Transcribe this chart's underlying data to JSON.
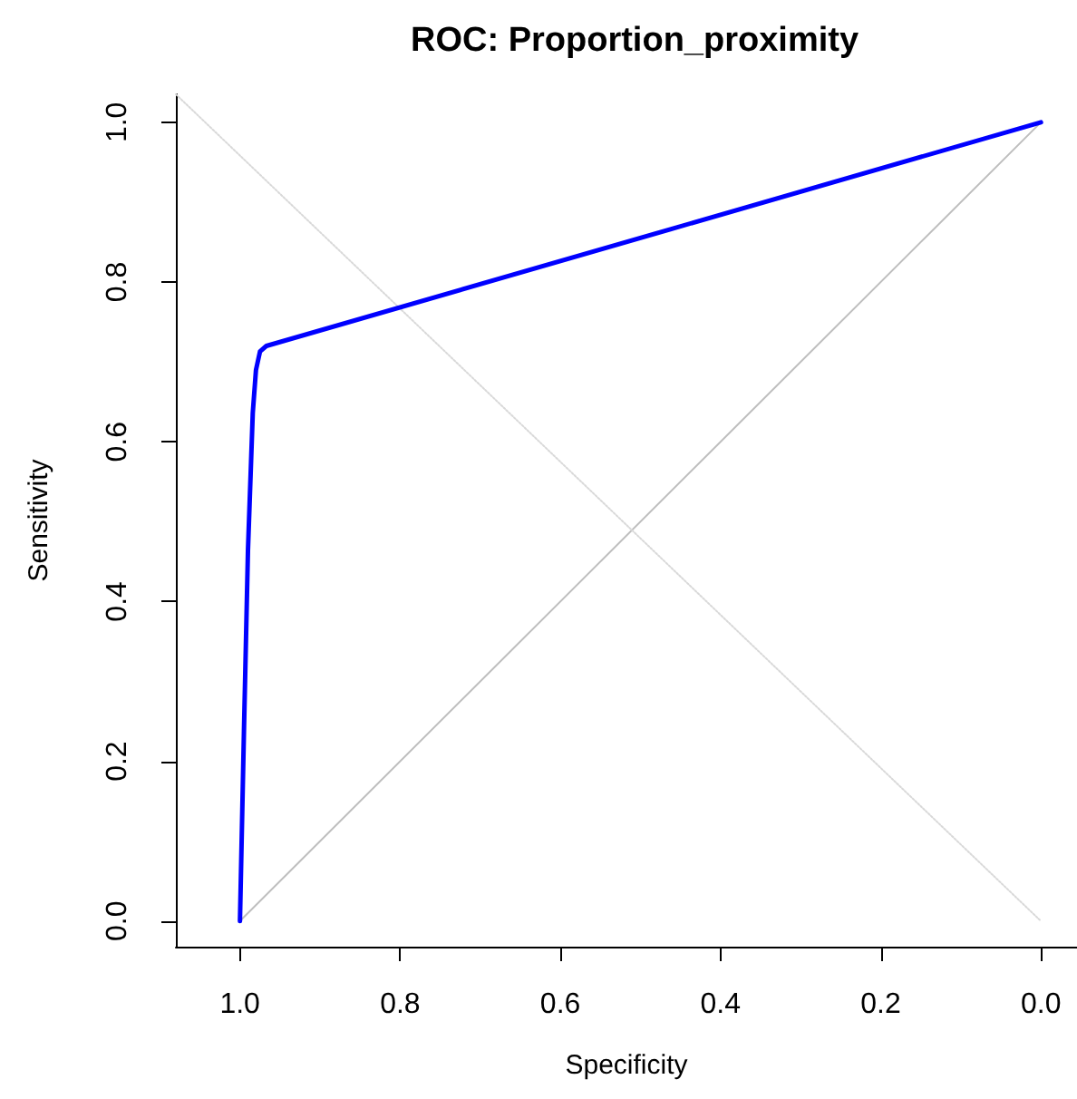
{
  "chart_data": {
    "type": "line",
    "title": "ROC: Proportion_proximity",
    "xlabel": "Specificity",
    "ylabel": "Sensitivity",
    "xlim": [
      1.08,
      -0.045
    ],
    "ylim": [
      -0.032,
      1.035
    ],
    "xticks": [
      {
        "value": 1,
        "label": "1.0"
      },
      {
        "value": 0.8,
        "label": "0.8"
      },
      {
        "value": 0.6,
        "label": "0.6"
      },
      {
        "value": 0.4,
        "label": "0.4"
      },
      {
        "value": 0.2,
        "label": "0.2"
      },
      {
        "value": 0,
        "label": "0.0"
      }
    ],
    "yticks": [
      {
        "value": 0,
        "label": "0.0"
      },
      {
        "value": 0.2,
        "label": "0.2"
      },
      {
        "value": 0.4,
        "label": "0.4"
      },
      {
        "value": 0.6,
        "label": "0.6"
      },
      {
        "value": 0.8,
        "label": "0.8"
      },
      {
        "value": 1,
        "label": "1.0"
      }
    ],
    "grid": false,
    "marker": "none",
    "series": [
      {
        "color": "#bebebe",
        "line_style": "solid",
        "x": [
          1,
          0
        ],
        "values": [
          0,
          1
        ]
      },
      {
        "color": "#d9d9d9",
        "line_style": "dotted",
        "x": [
          1.08,
          0
        ],
        "values": [
          1.035,
          0
        ]
      },
      {
        "color": "#0000ff",
        "line_style": "solid",
        "x": [
          1,
          0.995,
          0.99,
          0.984,
          0.98,
          0.975,
          0.967,
          0
        ],
        "values": [
          0,
          0.238,
          0.464,
          0.636,
          0.69,
          0.713,
          0.72,
          1
        ]
      }
    ]
  }
}
